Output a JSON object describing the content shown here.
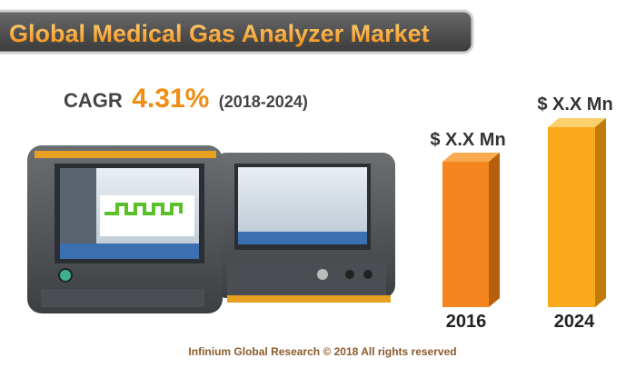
{
  "header": {
    "title": "Global Medical Gas Analyzer Market"
  },
  "cagr": {
    "label": "CAGR",
    "value": "4.31%",
    "period": "(2018-2024)"
  },
  "bars": [
    {
      "year": "2016",
      "label": "$ X.X Mn"
    },
    {
      "year": "2024",
      "label": "$ X.X Mn"
    }
  ],
  "footer": "Infinium Global Research © 2018 All rights reserved"
}
